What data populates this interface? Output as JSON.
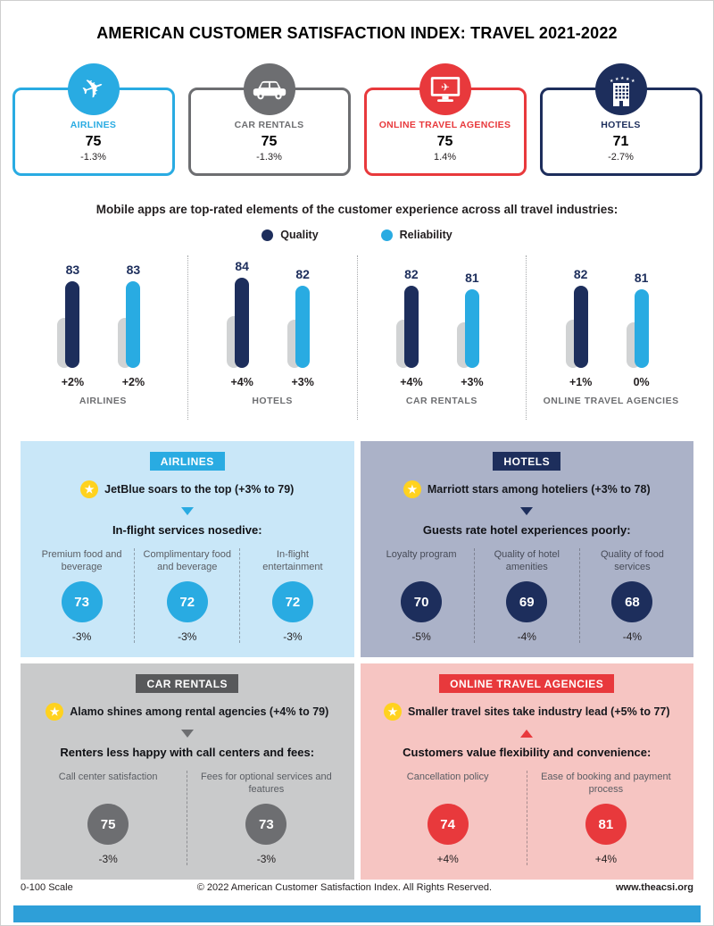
{
  "title": "AMERICAN CUSTOMER SATISFACTION INDEX: TRAVEL 2021-2022",
  "colors": {
    "cyan": "#29abe2",
    "navy": "#1d2e5c",
    "gray": "#6d6e71",
    "red": "#e8393c",
    "yellow": "#ffd21f"
  },
  "summary_cards": [
    {
      "label": "AIRLINES",
      "value": "75",
      "change": "-1.3%",
      "icon": "airplane-icon"
    },
    {
      "label": "CAR RENTALS",
      "value": "75",
      "change": "-1.3%",
      "icon": "car-icon"
    },
    {
      "label": "ONLINE TRAVEL AGENCIES",
      "value": "75",
      "change": "1.4%",
      "icon": "monitor-icon"
    },
    {
      "label": "HOTELS",
      "value": "71",
      "change": "-2.7%",
      "icon": "hotel-icon"
    }
  ],
  "chart_data": {
    "type": "bar",
    "title": "Mobile apps are top-rated elements of the customer experience across all travel industries:",
    "legend": [
      {
        "label": "Quality",
        "color": "#1d2e5c"
      },
      {
        "label": "Reliability",
        "color": "#29abe2"
      }
    ],
    "categories": [
      "AIRLINES",
      "HOTELS",
      "CAR RENTALS",
      "ONLINE TRAVEL AGENCIES"
    ],
    "series": [
      {
        "name": "Quality",
        "values": [
          83,
          84,
          82,
          82
        ],
        "changes": [
          "+2%",
          "+4%",
          "+4%",
          "+1%"
        ]
      },
      {
        "name": "Reliability",
        "values": [
          83,
          82,
          81,
          81
        ],
        "changes": [
          "+2%",
          "+3%",
          "+3%",
          "0%"
        ]
      }
    ],
    "ylim": [
      0,
      100
    ],
    "scale_note": "0-100 Scale"
  },
  "panels": [
    {
      "header": "AIRLINES",
      "highlight": "JetBlue soars to the top (+3% to 79)",
      "trend": "down",
      "subtitle": "In-flight services nosedive:",
      "items": [
        {
          "label": "Premium food and beverage",
          "value": "73",
          "change": "-3%"
        },
        {
          "label": "Complimentary food and beverage",
          "value": "72",
          "change": "-3%"
        },
        {
          "label": "In-flight entertainment",
          "value": "72",
          "change": "-3%"
        }
      ]
    },
    {
      "header": "HOTELS",
      "highlight": "Marriott stars among hoteliers (+3% to 78)",
      "trend": "down",
      "subtitle": "Guests rate hotel experiences poorly:",
      "items": [
        {
          "label": "Loyalty program",
          "value": "70",
          "change": "-5%"
        },
        {
          "label": "Quality of hotel amenities",
          "value": "69",
          "change": "-4%"
        },
        {
          "label": "Quality of food services",
          "value": "68",
          "change": "-4%"
        }
      ]
    },
    {
      "header": "CAR RENTALS",
      "highlight": "Alamo shines among rental agencies (+4% to 79)",
      "trend": "down",
      "subtitle": "Renters less happy with call centers and fees:",
      "items": [
        {
          "label": "Call center satisfaction",
          "value": "75",
          "change": "-3%"
        },
        {
          "label": "Fees for optional services and features",
          "value": "73",
          "change": "-3%"
        }
      ]
    },
    {
      "header": "ONLINE TRAVEL AGENCIES",
      "highlight": "Smaller travel sites take industry lead (+5% to 77)",
      "trend": "up",
      "subtitle": "Customers value flexibility and convenience:",
      "items": [
        {
          "label": "Cancellation policy",
          "value": "74",
          "change": "+4%"
        },
        {
          "label": "Ease of booking and payment process",
          "value": "81",
          "change": "+4%"
        }
      ]
    }
  ],
  "footer": {
    "scale": "0-100 Scale",
    "copyright": "© 2022 American Customer Satisfaction Index. All Rights Reserved.",
    "website": "www.theacsi.org"
  }
}
